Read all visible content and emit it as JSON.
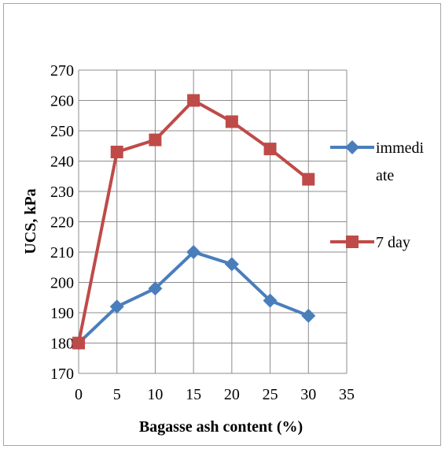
{
  "chart_data": {
    "type": "line",
    "title": "",
    "xlabel": "Bagasse ash content (%)",
    "ylabel": "UCS, kPa",
    "x": [
      0,
      5,
      10,
      15,
      20,
      25,
      30
    ],
    "xlim": [
      0,
      35
    ],
    "ylim": [
      170,
      270
    ],
    "xticks": [
      "0",
      "5",
      "10",
      "15",
      "20",
      "25",
      "30",
      "35"
    ],
    "yticks": [
      "170",
      "180",
      "190",
      "200",
      "210",
      "220",
      "230",
      "240",
      "250",
      "260",
      "270"
    ],
    "grid": true,
    "legend_position": "right",
    "series": [
      {
        "name": "immediate",
        "legend_lines": [
          "immedi",
          "ate"
        ],
        "color": "#4a7ebb",
        "marker": "diamond",
        "values": [
          180,
          192,
          198,
          210,
          206,
          194,
          189
        ]
      },
      {
        "name": "7 day",
        "legend_lines": [
          "7 day"
        ],
        "color": "#be4b48",
        "marker": "square",
        "values": [
          180,
          243,
          247,
          260,
          253,
          244,
          234
        ]
      }
    ]
  }
}
